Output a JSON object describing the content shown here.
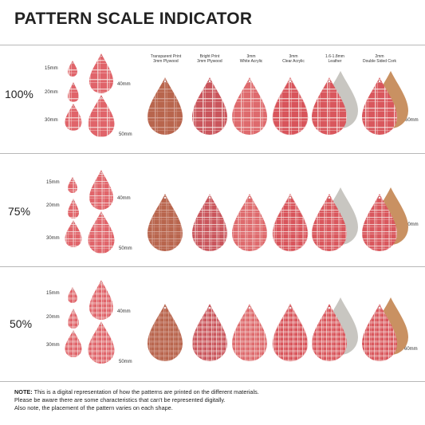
{
  "title": "PATTERN SCALE INDICATOR",
  "sections": [
    {
      "scale": "100%"
    },
    {
      "scale": "75%"
    },
    {
      "scale": "50%"
    }
  ],
  "sizes": [
    "15mm",
    "20mm",
    "30mm",
    "40mm",
    "50mm",
    "60mm"
  ],
  "materials": [
    {
      "line1": "Transparent Print",
      "line2": "3mm Plywood",
      "base": "#b8654d"
    },
    {
      "line1": "Bright Print",
      "line2": "3mm Plywood",
      "base": "#c9555c"
    },
    {
      "line1": "3mm",
      "line2": "White Acrylic",
      "base": "#de6a6d"
    },
    {
      "line1": "3mm",
      "line2": "Clear Acrylic",
      "base": "#d8545b"
    },
    {
      "line1": "1.6-1.8mm",
      "line2": "Leather",
      "base": "#d9575d",
      "back": "#c8c6c1"
    },
    {
      "line1": "2mm",
      "line2": "Double Sided Cork",
      "base": "#d9575d",
      "back": "#c99162"
    }
  ],
  "note": {
    "label": "NOTE:",
    "line1": "This is a digital representation of how the patterns are printed on the different materials.",
    "line2": "Please be aware there are some characteristics that can't be represented digitally.",
    "line3": "Also note, the placement of the pattern varies on each shape."
  },
  "colors": {
    "pattern_red": "#e0646a",
    "plaid_line": "#f7e6e4"
  }
}
